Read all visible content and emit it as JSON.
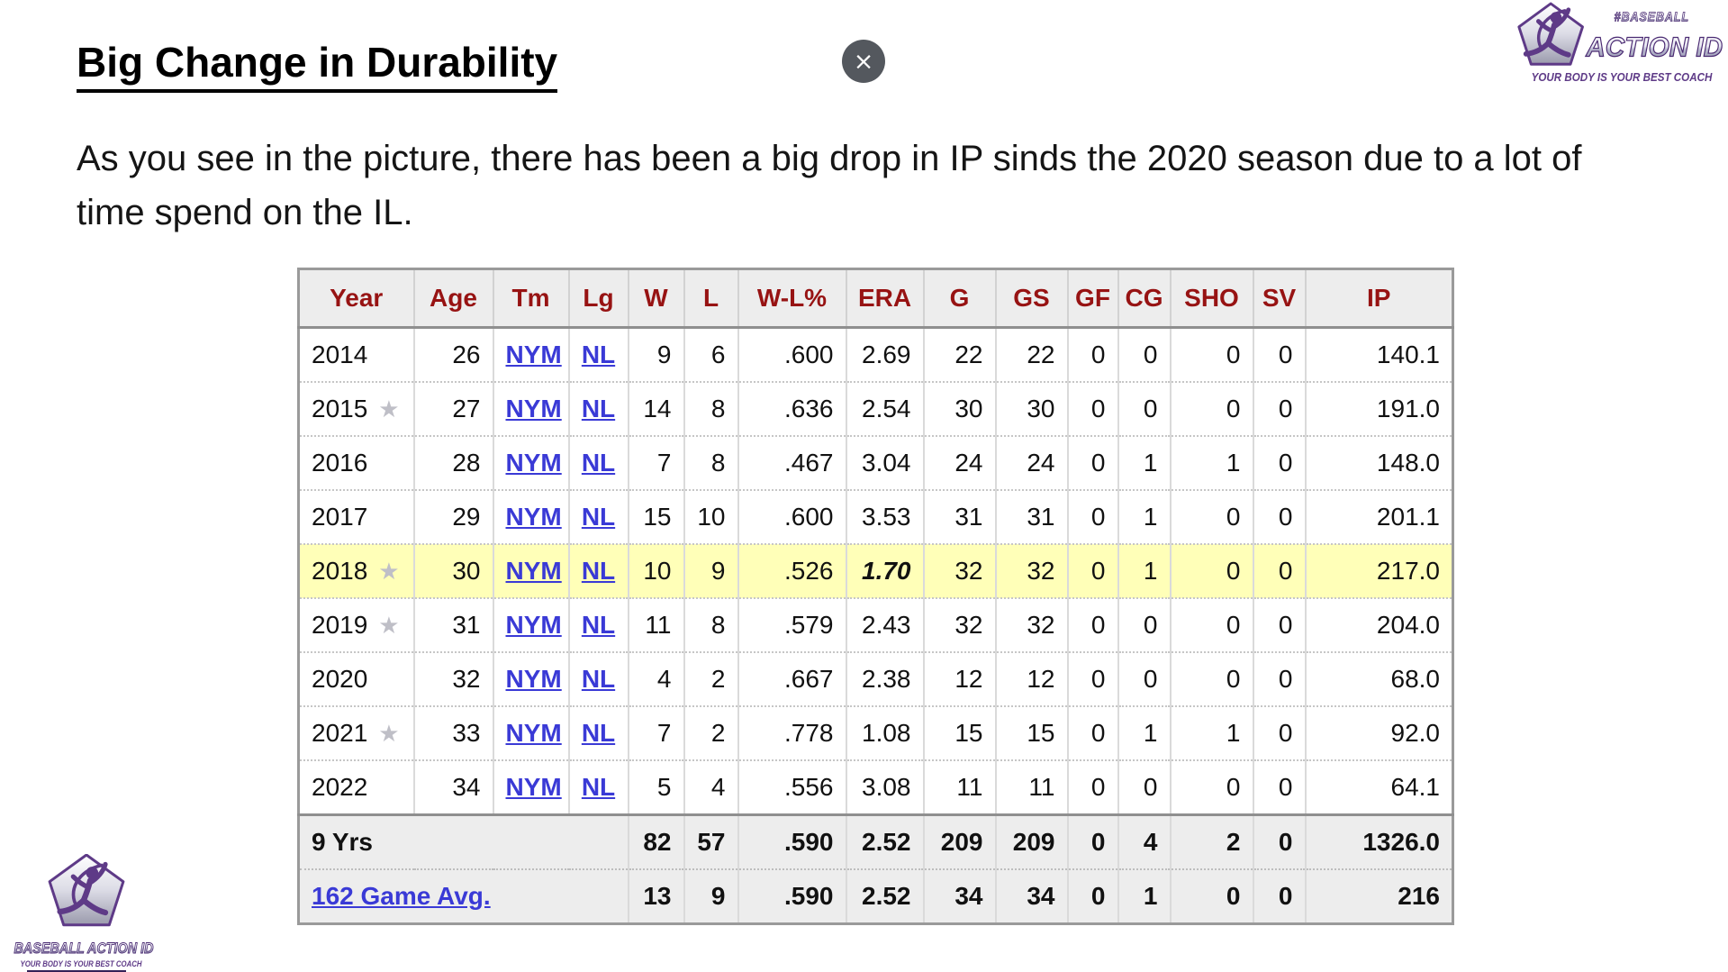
{
  "page": {
    "title": "Big Change in Durability",
    "intro_lines": [
      "As you see in the picture, there has been a big drop in IP sinds the 2020 season due to a lot of",
      "time spend on the IL."
    ]
  },
  "close_button": {
    "glyph": "×"
  },
  "brand": {
    "hashtag": "#BASEBALL",
    "wordmark": "ACTION ID",
    "wordmark_full": "BASEBALL ACTION ID",
    "tagline": "YOUR BODY IS YOUR BEST COACH",
    "purple": "#5e3a87"
  },
  "icons": {
    "all_star_glyph": "★"
  },
  "table": {
    "headers": [
      "Year",
      "Age",
      "Tm",
      "Lg",
      "W",
      "L",
      "W-L%",
      "ERA",
      "G",
      "GS",
      "GF",
      "CG",
      "SHO",
      "SV",
      "IP"
    ],
    "rows": [
      {
        "year": "2014",
        "star": false,
        "highlight": false,
        "era_emph": false,
        "age": "26",
        "tm": "NYM",
        "lg": "NL",
        "w": "9",
        "l": "6",
        "wl": ".600",
        "era": "2.69",
        "g": "22",
        "gs": "22",
        "gf": "0",
        "cg": "0",
        "sho": "0",
        "sv": "0",
        "ip": "140.1"
      },
      {
        "year": "2015",
        "star": true,
        "highlight": false,
        "era_emph": false,
        "age": "27",
        "tm": "NYM",
        "lg": "NL",
        "w": "14",
        "l": "8",
        "wl": ".636",
        "era": "2.54",
        "g": "30",
        "gs": "30",
        "gf": "0",
        "cg": "0",
        "sho": "0",
        "sv": "0",
        "ip": "191.0"
      },
      {
        "year": "2016",
        "star": false,
        "highlight": false,
        "era_emph": false,
        "age": "28",
        "tm": "NYM",
        "lg": "NL",
        "w": "7",
        "l": "8",
        "wl": ".467",
        "era": "3.04",
        "g": "24",
        "gs": "24",
        "gf": "0",
        "cg": "1",
        "sho": "1",
        "sv": "0",
        "ip": "148.0"
      },
      {
        "year": "2017",
        "star": false,
        "highlight": false,
        "era_emph": false,
        "age": "29",
        "tm": "NYM",
        "lg": "NL",
        "w": "15",
        "l": "10",
        "wl": ".600",
        "era": "3.53",
        "g": "31",
        "gs": "31",
        "gf": "0",
        "cg": "1",
        "sho": "0",
        "sv": "0",
        "ip": "201.1"
      },
      {
        "year": "2018",
        "star": true,
        "highlight": true,
        "era_emph": true,
        "age": "30",
        "tm": "NYM",
        "lg": "NL",
        "w": "10",
        "l": "9",
        "wl": ".526",
        "era": "1.70",
        "g": "32",
        "gs": "32",
        "gf": "0",
        "cg": "1",
        "sho": "0",
        "sv": "0",
        "ip": "217.0"
      },
      {
        "year": "2019",
        "star": true,
        "highlight": false,
        "era_emph": false,
        "age": "31",
        "tm": "NYM",
        "lg": "NL",
        "w": "11",
        "l": "8",
        "wl": ".579",
        "era": "2.43",
        "g": "32",
        "gs": "32",
        "gf": "0",
        "cg": "0",
        "sho": "0",
        "sv": "0",
        "ip": "204.0"
      },
      {
        "year": "2020",
        "star": false,
        "highlight": false,
        "era_emph": false,
        "age": "32",
        "tm": "NYM",
        "lg": "NL",
        "w": "4",
        "l": "2",
        "wl": ".667",
        "era": "2.38",
        "g": "12",
        "gs": "12",
        "gf": "0",
        "cg": "0",
        "sho": "0",
        "sv": "0",
        "ip": "68.0"
      },
      {
        "year": "2021",
        "star": true,
        "highlight": false,
        "era_emph": false,
        "age": "33",
        "tm": "NYM",
        "lg": "NL",
        "w": "7",
        "l": "2",
        "wl": ".778",
        "era": "1.08",
        "g": "15",
        "gs": "15",
        "gf": "0",
        "cg": "1",
        "sho": "1",
        "sv": "0",
        "ip": "92.0"
      },
      {
        "year": "2022",
        "star": false,
        "highlight": false,
        "era_emph": false,
        "age": "34",
        "tm": "NYM",
        "lg": "NL",
        "w": "5",
        "l": "4",
        "wl": ".556",
        "era": "3.08",
        "g": "11",
        "gs": "11",
        "gf": "0",
        "cg": "0",
        "sho": "0",
        "sv": "0",
        "ip": "64.1"
      }
    ],
    "summary": [
      {
        "label": "9 Yrs",
        "is_link": false,
        "w": "82",
        "l": "57",
        "wl": ".590",
        "era": "2.52",
        "g": "209",
        "gs": "209",
        "gf": "0",
        "cg": "4",
        "sho": "2",
        "sv": "0",
        "ip": "1326.0"
      },
      {
        "label": "162 Game Avg.",
        "is_link": true,
        "w": "13",
        "l": "9",
        "wl": ".590",
        "era": "2.52",
        "g": "34",
        "gs": "34",
        "gf": "0",
        "cg": "1",
        "sho": "0",
        "sv": "0",
        "ip": "216"
      }
    ]
  },
  "colors": {
    "header_text": "#971313",
    "link": "#3a3ad6",
    "highlight_row": "#ffffb8",
    "panel_gray": "#ededed",
    "close_button_bg": "#54585e"
  }
}
